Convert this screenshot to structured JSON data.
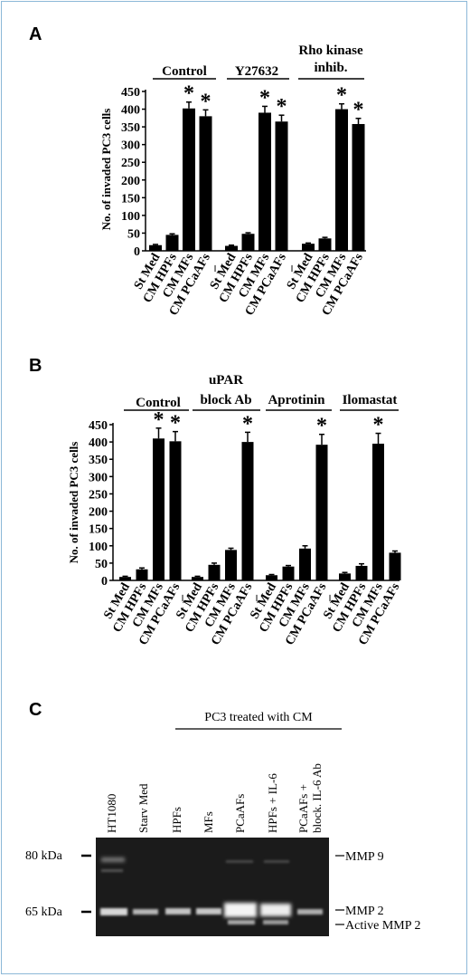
{
  "chart_data": [
    {
      "panel": "A",
      "type": "bar",
      "ylabel": "No. of invaded PC3 cells",
      "ylim": [
        0,
        450
      ],
      "yticks": [
        0,
        50,
        100,
        150,
        200,
        250,
        300,
        350,
        400,
        450
      ],
      "categories": [
        "St Med",
        "CM HPFs",
        "CM MFs",
        "CM PCaAFs"
      ],
      "dash_label": "–",
      "groups": [
        {
          "label": "Control",
          "values": [
            16,
            45,
            402,
            380
          ],
          "errors": [
            2,
            3,
            18,
            18
          ],
          "stars": [
            false,
            false,
            true,
            true
          ]
        },
        {
          "label": "Y27632",
          "values": [
            14,
            48,
            390,
            365
          ],
          "errors": [
            2,
            3,
            18,
            18
          ],
          "stars": [
            false,
            false,
            true,
            true
          ]
        },
        {
          "label": "Rho kinase inhib.",
          "values": [
            20,
            35,
            400,
            358
          ],
          "errors": [
            2,
            3,
            15,
            16
          ],
          "stars": [
            false,
            false,
            true,
            true
          ]
        }
      ]
    },
    {
      "panel": "B",
      "type": "bar",
      "ylabel": "No. of invaded PC3 cells",
      "ylim": [
        0,
        450
      ],
      "yticks": [
        0,
        50,
        100,
        150,
        200,
        250,
        300,
        350,
        400,
        450
      ],
      "categories": [
        "St Med",
        "CM HPFs",
        "CM MFs",
        "CM PCaAFs"
      ],
      "dash_label": "–",
      "groups": [
        {
          "label": "Control",
          "values": [
            10,
            32,
            410,
            402
          ],
          "errors": [
            2,
            4,
            30,
            28
          ],
          "stars": [
            false,
            false,
            true,
            true
          ]
        },
        {
          "label": "uPAR block Ab",
          "values": [
            10,
            45,
            88,
            400
          ],
          "errors": [
            2,
            5,
            5,
            28
          ],
          "stars": [
            false,
            false,
            false,
            true
          ]
        },
        {
          "label": "Aprotinin",
          "values": [
            15,
            40,
            92,
            392
          ],
          "errors": [
            2,
            3,
            8,
            30
          ],
          "stars": [
            false,
            false,
            false,
            true
          ]
        },
        {
          "label": "Ilomastat",
          "values": [
            20,
            42,
            395,
            80
          ],
          "errors": [
            3,
            6,
            30,
            5
          ],
          "stars": [
            false,
            false,
            true,
            false
          ]
        }
      ]
    }
  ],
  "star_symbol": "*",
  "panel_a": {
    "letter": "A",
    "groups": [
      "Control",
      "Y27632"
    ],
    "group3_line1": "Rho kinase",
    "group3_line2": "inhib."
  },
  "panel_b": {
    "letter": "B",
    "groups": [
      "Control",
      "Aprotinin",
      "Ilomastat"
    ],
    "group2_line1": "uPAR",
    "group2_line2": "block Ab"
  },
  "panel_c": {
    "letter": "C",
    "header": "PC3 treated with CM",
    "lanes": [
      "HT1080",
      "Starv Med",
      "HPFs",
      "MFs",
      "PCaAFs",
      "HPFs + IL-6",
      "PCaAFs +"
    ],
    "lane7_line2": "block. IL-6 Ab",
    "markers": [
      "80 kDa",
      "65 kDa"
    ],
    "band_labels": [
      "MMP 9",
      "MMP 2",
      "Active MMP 2"
    ]
  }
}
